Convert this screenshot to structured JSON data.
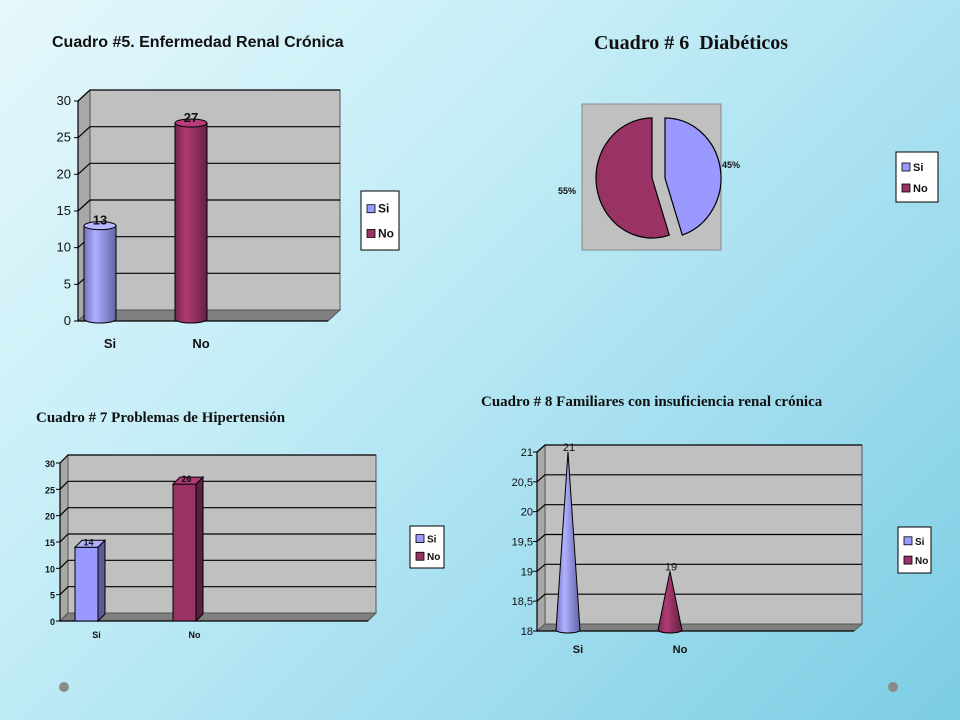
{
  "colors": {
    "si": "#9999ff",
    "no": "#993366",
    "plot": "#c0c0c0",
    "floor": "#808080"
  },
  "chart_data": [
    {
      "id": "c5",
      "type": "bar",
      "title": "Cuadro #5. Enfermedad Renal Crónica",
      "categories": [
        "Si",
        "No"
      ],
      "values": [
        13,
        27
      ],
      "data_labels": [
        "13",
        "27"
      ],
      "yticks": [
        "0",
        "5",
        "10",
        "15",
        "20",
        "25",
        "30"
      ],
      "ylim": [
        0,
        30
      ],
      "legend": [
        "Si",
        "No"
      ],
      "legend_position": "right"
    },
    {
      "id": "c6",
      "type": "pie",
      "title": "Cuadro # 6  Diabéticos",
      "categories": [
        "Si",
        "No"
      ],
      "values": [
        45,
        55
      ],
      "data_labels": [
        "45%",
        "55%"
      ],
      "legend": [
        "Si",
        "No"
      ],
      "legend_position": "right"
    },
    {
      "id": "c7",
      "type": "bar",
      "title": "Cuadro # 7 Problemas de Hipertensión",
      "categories": [
        "Si",
        "No"
      ],
      "values": [
        14,
        26
      ],
      "data_labels": [
        "14",
        "26"
      ],
      "yticks": [
        "0",
        "5",
        "10",
        "15",
        "20",
        "25",
        "30"
      ],
      "ylim": [
        0,
        30
      ],
      "legend": [
        "Si",
        "No"
      ],
      "legend_position": "right"
    },
    {
      "id": "c8",
      "type": "bar",
      "title": "Cuadro # 8 Familiares con insuficiencia renal crónica",
      "categories": [
        "Si",
        "No"
      ],
      "values": [
        21,
        19
      ],
      "data_labels": [
        "21",
        "19"
      ],
      "yticks": [
        "18",
        "18,5",
        "19",
        "19,5",
        "20",
        "20,5",
        "21"
      ],
      "ylim": [
        18,
        21
      ],
      "legend": [
        "Si",
        "No"
      ],
      "legend_position": "right"
    }
  ]
}
